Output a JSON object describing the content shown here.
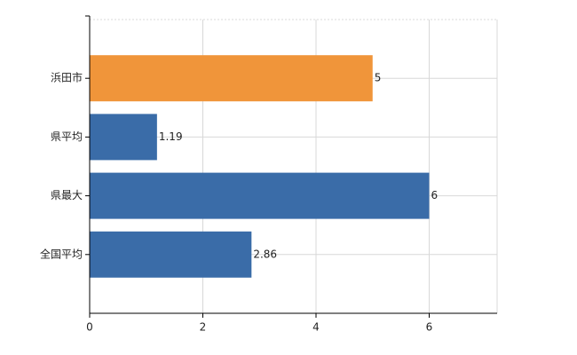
{
  "chart_data": {
    "type": "barh",
    "categories": [
      "浜田市",
      "県平均",
      "県最大",
      "全国平均"
    ],
    "values": [
      5,
      1.19,
      6,
      2.86
    ],
    "colors": [
      "#f0953a",
      "#3a6ca8",
      "#3a6ca8",
      "#3a6ca8"
    ],
    "xlim": [
      0,
      7.2
    ],
    "xticks": [
      0,
      2,
      4,
      6
    ],
    "grid": true
  }
}
